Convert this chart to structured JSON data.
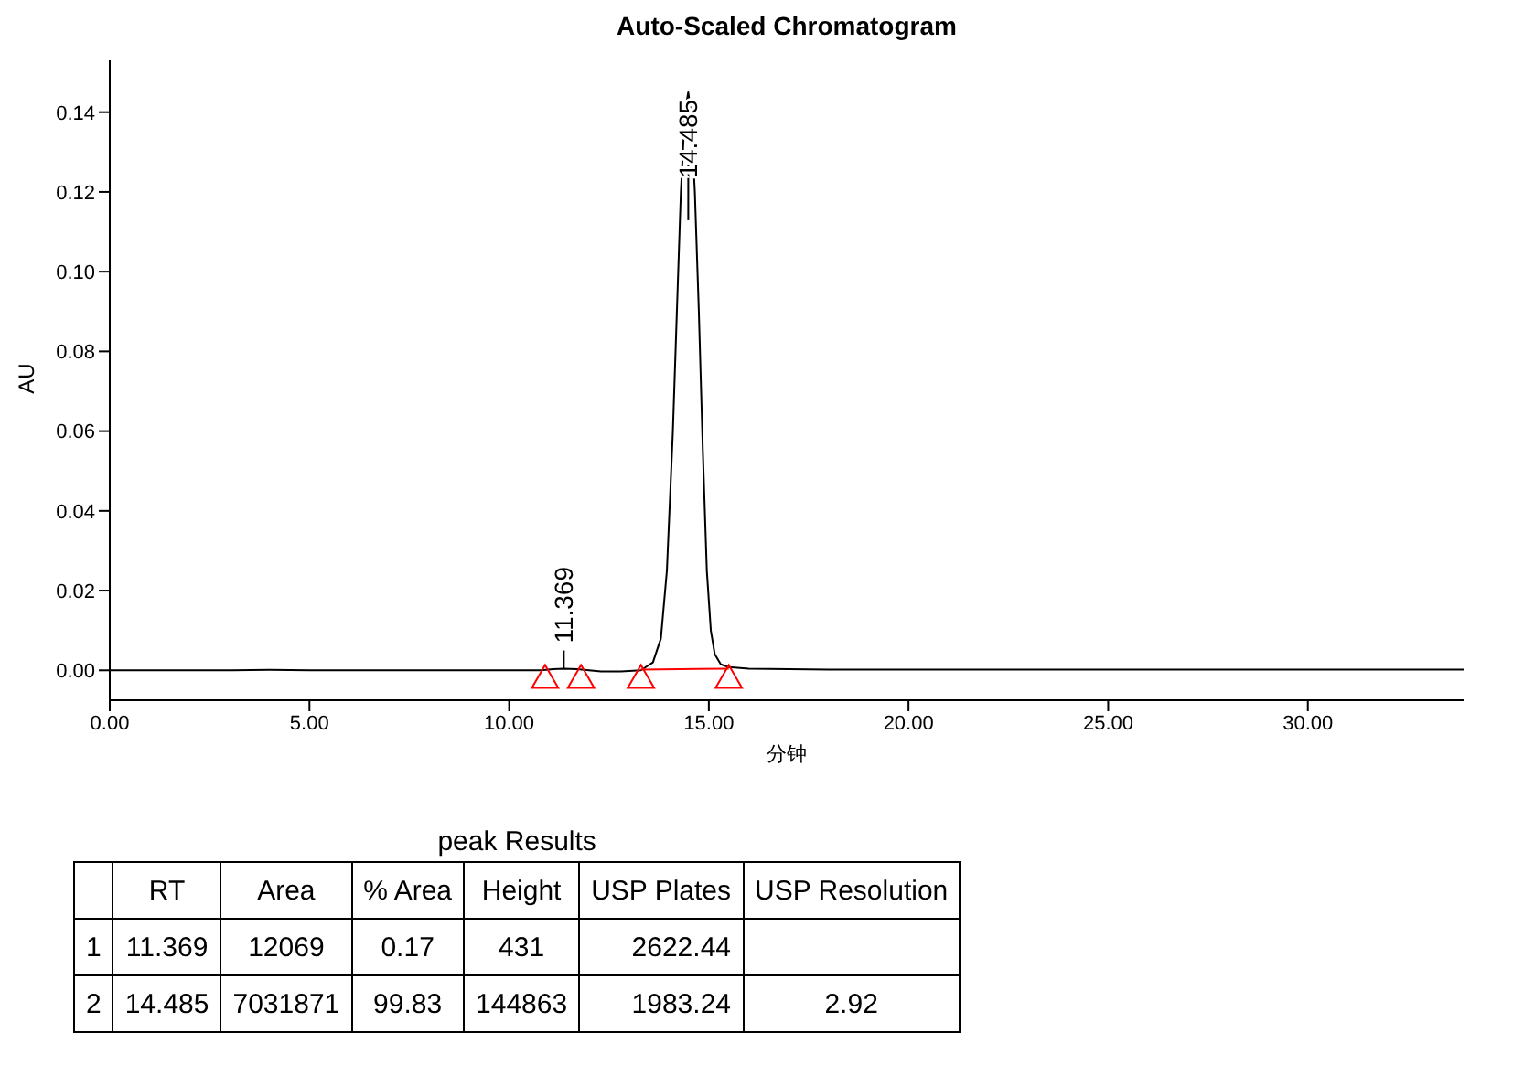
{
  "chart_data": [
    {
      "type": "line",
      "title": "Auto-Scaled Chromatogram",
      "xlabel": "分钟",
      "ylabel": "AU",
      "xlim": [
        0,
        33.9
      ],
      "ylim": [
        -0.0075,
        0.153
      ],
      "xticks": [
        {
          "value": 0,
          "label": "0.00"
        },
        {
          "value": 5,
          "label": "5.00"
        },
        {
          "value": 10,
          "label": "10.00"
        },
        {
          "value": 15,
          "label": "15.00"
        },
        {
          "value": 20,
          "label": "20.00"
        },
        {
          "value": 25,
          "label": "25.00"
        },
        {
          "value": 30,
          "label": "30.00"
        }
      ],
      "yticks": [
        {
          "value": 0,
          "label": "0.00"
        },
        {
          "value": 0.02,
          "label": "0.02"
        },
        {
          "value": 0.04,
          "label": "0.04"
        },
        {
          "value": 0.06,
          "label": "0.06"
        },
        {
          "value": 0.08,
          "label": "0.08"
        },
        {
          "value": 0.1,
          "label": "0.10"
        },
        {
          "value": 0.12,
          "label": "0.12"
        },
        {
          "value": 0.14,
          "label": "0.14"
        }
      ],
      "annotations": [
        {
          "text": "11.369",
          "x": 11.369,
          "y": 0.0004
        },
        {
          "text": "14.485",
          "x": 14.485,
          "y": 0.145
        }
      ],
      "series": [
        {
          "type": "line",
          "color": "#000000",
          "marker": "none",
          "x": [
            0,
            3,
            4,
            5,
            8,
            10.8,
            11.1,
            11.369,
            11.7,
            12.0,
            12.3,
            12.8,
            13.3,
            13.6,
            13.8,
            13.95,
            14.1,
            14.2,
            14.3,
            14.4,
            14.485,
            14.55,
            14.65,
            14.75,
            14.85,
            14.95,
            15.05,
            15.15,
            15.3,
            15.5,
            16,
            18,
            22,
            26,
            30,
            33.9
          ],
          "values": [
            0,
            0,
            0.0001,
            0,
            0,
            0,
            0.0003,
            0.0004,
            0.0003,
            0,
            -0.0003,
            -0.0003,
            0,
            0.002,
            0.008,
            0.025,
            0.06,
            0.09,
            0.12,
            0.14,
            0.145,
            0.14,
            0.12,
            0.09,
            0.055,
            0.025,
            0.01,
            0.004,
            0.0015,
            0.0008,
            0.0004,
            0.0002,
            0.0002,
            0.0002,
            0.0002,
            0.0002
          ]
        },
        {
          "type": "line",
          "color": "#ff0000",
          "marker": "none",
          "x": [
            13.3,
            15.5
          ],
          "values": [
            0.0002,
            0.0004
          ]
        },
        {
          "type": "scatter",
          "color": "#ff0000",
          "marker": "triangle",
          "x": [
            10.9,
            11.8,
            13.3,
            15.5
          ],
          "values": [
            -0.0025,
            -0.0025,
            -0.0025,
            -0.0025
          ]
        }
      ]
    },
    {
      "type": "other",
      "title": "peak Results",
      "categories": [
        null,
        "RT",
        "Area",
        "% Area",
        "Height",
        "USP Plates",
        "USP Resolution"
      ],
      "y_categories": [
        "1",
        "2"
      ],
      "cell_labels": [
        [
          "11.369",
          "12069",
          "0.17",
          "431",
          "2622.44",
          null
        ],
        [
          "14.485",
          "7031871",
          "99.83",
          "144863",
          "1983.24",
          "2.92"
        ]
      ]
    }
  ]
}
